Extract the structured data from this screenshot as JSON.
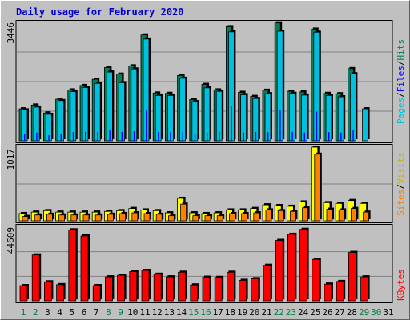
{
  "title": "Daily usage for February 2020",
  "colors": {
    "hits": "#00805c",
    "files": "#0000ff",
    "pages": "#00c0e0",
    "visits": "#ffff00",
    "sites": "#ff8000",
    "kbytes": "#ff0000",
    "title": "#0000cc",
    "background": "#c0c0c0",
    "weekend_label": "#008040"
  },
  "legend": {
    "hits_pages": [
      "Pages",
      "/",
      "Files",
      "/",
      "Hits"
    ],
    "visits_sites": [
      "Sites",
      "/",
      "Visits"
    ],
    "kbytes": [
      "KBytes"
    ]
  },
  "axis_max_labels": {
    "hits_pages": "3446",
    "visits_sites": "1017",
    "kbytes": "44609"
  },
  "chart_data": [
    {
      "type": "bar",
      "name": "hits-files-pages",
      "categories": [
        "1",
        "2",
        "3",
        "4",
        "5",
        "6",
        "7",
        "8",
        "9",
        "10",
        "11",
        "12",
        "13",
        "14",
        "15",
        "16",
        "17",
        "18",
        "19",
        "20",
        "21",
        "22",
        "23",
        "24",
        "25",
        "26",
        "27",
        "28",
        "29",
        "30",
        "31"
      ],
      "weekend_days": [
        "1",
        "2",
        "8",
        "9",
        "15",
        "16",
        "22",
        "23",
        "29",
        "30"
      ],
      "ylim": [
        0,
        3446
      ],
      "series": [
        {
          "name": "Hits",
          "values": [
            930,
            1040,
            810,
            1210,
            1480,
            1610,
            1790,
            2130,
            1940,
            2180,
            3080,
            1390,
            1380,
            1900,
            1200,
            1640,
            1480,
            3320,
            1410,
            1290,
            1470,
            3430,
            1440,
            1420,
            3250,
            1380,
            1370,
            2100,
            0,
            0,
            0
          ]
        },
        {
          "name": "Files",
          "values": [
            200,
            240,
            160,
            200,
            250,
            260,
            250,
            300,
            260,
            280,
            900,
            260,
            260,
            260,
            200,
            240,
            250,
            1000,
            240,
            260,
            250,
            900,
            260,
            240,
            850,
            250,
            240,
            300,
            0,
            0,
            0
          ]
        },
        {
          "name": "Pages",
          "values": [
            900,
            980,
            770,
            1170,
            1430,
            1550,
            1670,
            2000,
            1690,
            2090,
            2960,
            1320,
            1320,
            1820,
            1140,
            1540,
            1440,
            3170,
            1340,
            1230,
            1370,
            3190,
            1380,
            1330,
            3160,
            1320,
            1280,
            1950,
            930,
            0,
            0
          ]
        }
      ]
    },
    {
      "type": "bar",
      "name": "visits-sites",
      "categories": [
        "1",
        "2",
        "3",
        "4",
        "5",
        "6",
        "7",
        "8",
        "9",
        "10",
        "11",
        "12",
        "13",
        "14",
        "15",
        "16",
        "17",
        "18",
        "19",
        "20",
        "21",
        "22",
        "23",
        "24",
        "25",
        "26",
        "27",
        "28",
        "29",
        "30",
        "31"
      ],
      "ylim": [
        0,
        1017
      ],
      "series": [
        {
          "name": "Visits",
          "values": [
            100,
            120,
            140,
            120,
            120,
            120,
            120,
            130,
            140,
            170,
            150,
            140,
            110,
            310,
            110,
            100,
            110,
            150,
            150,
            170,
            220,
            210,
            200,
            260,
            1017,
            250,
            240,
            280,
            240,
            0,
            0
          ]
        },
        {
          "name": "Sites",
          "values": [
            60,
            80,
            90,
            80,
            80,
            80,
            80,
            90,
            100,
            110,
            100,
            90,
            70,
            230,
            70,
            70,
            70,
            100,
            100,
            110,
            150,
            140,
            130,
            180,
            920,
            160,
            150,
            170,
            120,
            0,
            0
          ]
        }
      ]
    },
    {
      "type": "bar",
      "name": "kbytes",
      "categories": [
        "1",
        "2",
        "3",
        "4",
        "5",
        "6",
        "7",
        "8",
        "9",
        "10",
        "11",
        "12",
        "13",
        "14",
        "15",
        "16",
        "17",
        "18",
        "19",
        "20",
        "21",
        "22",
        "23",
        "24",
        "25",
        "26",
        "27",
        "28",
        "29",
        "30",
        "31"
      ],
      "ylim": [
        0,
        44609
      ],
      "series": [
        {
          "name": "KBytes",
          "values": [
            9200,
            27800,
            11500,
            9800,
            43000,
            39300,
            9200,
            14500,
            15500,
            17700,
            18400,
            16100,
            14500,
            17300,
            9600,
            14300,
            14200,
            17300,
            12400,
            13400,
            21500,
            36600,
            40300,
            43300,
            25100,
            10100,
            11700,
            29300,
            14500,
            0,
            0
          ]
        }
      ]
    }
  ]
}
